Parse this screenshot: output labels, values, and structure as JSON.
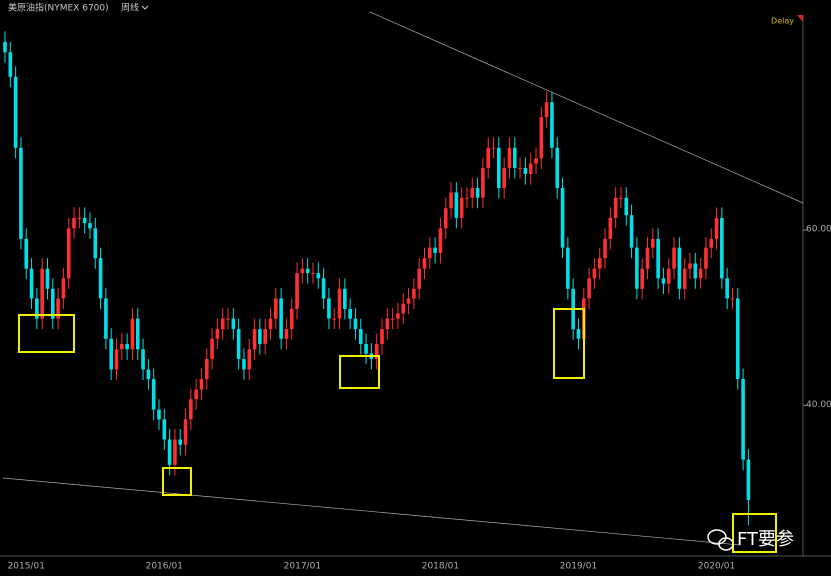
{
  "chart_data": {
    "type": "candlestick",
    "title": "美原油指(NYMEX 6700)",
    "period": "周线",
    "status": "Delay",
    "watermark": "FT要参",
    "up_color": "#ff3030",
    "down_color": "#00e0e8",
    "categories": [
      null,
      null,
      null,
      null,
      "2015/01",
      null,
      null,
      null,
      null,
      null,
      null,
      null,
      null,
      null,
      null,
      null,
      null,
      null,
      null,
      null,
      null,
      null,
      null,
      null,
      null,
      null,
      null,
      null,
      null,
      null,
      "2016/01",
      null,
      null,
      null,
      null,
      null,
      null,
      null,
      null,
      null,
      null,
      null,
      null,
      null,
      null,
      null,
      null,
      null,
      null,
      null,
      null,
      null,
      null,
      null,
      null,
      null,
      "2017/01",
      null,
      null,
      null,
      null,
      null,
      null,
      null,
      null,
      null,
      null,
      null,
      null,
      null,
      null,
      null,
      null,
      null,
      null,
      null,
      null,
      null,
      null,
      null,
      null,
      null,
      "2018/01",
      null,
      null,
      null,
      null,
      null,
      null,
      null,
      null,
      null,
      null,
      null,
      null,
      null,
      null,
      null,
      null,
      null,
      null,
      null,
      null,
      null,
      null,
      null,
      null,
      null,
      "2019/01",
      null,
      null,
      null,
      null,
      null,
      null,
      null,
      null,
      null,
      null,
      null,
      null,
      null,
      null,
      null,
      null,
      null,
      null,
      null,
      null,
      null,
      null,
      null,
      null,
      null,
      "2020/01",
      null,
      null,
      null,
      null,
      null,
      null
    ],
    "open": [
      81.5,
      80.3,
      77.5,
      69.4,
      59,
      55.6,
      52.2,
      49.9,
      55.6,
      53.3,
      49.9,
      52.2,
      54.5,
      60.2,
      61.4,
      61.4,
      60.8,
      60.2,
      56.8,
      52.2,
      47.6,
      44.1,
      46.4,
      47,
      46.4,
      49.9,
      46.4,
      44.1,
      43,
      39.5,
      38.4,
      36.1,
      33.2,
      36.1,
      35.5,
      38.4,
      40.7,
      41.8,
      43,
      45.3,
      47.6,
      48.7,
      49.9,
      49.9,
      48.7,
      45.3,
      44.1,
      46.4,
      48.7,
      47,
      48.7,
      49.9,
      52.2,
      47.6,
      48.7,
      51,
      55.1,
      55.6,
      55.1,
      55.1,
      54.5,
      52.2,
      49.9,
      49.9,
      53.3,
      51,
      49.9,
      48.7,
      47,
      45.9,
      45.3,
      47,
      48.7,
      49.9,
      49.9,
      50.5,
      51.6,
      52.2,
      53.3,
      55.6,
      56.8,
      58,
      57.4,
      60.2,
      62.5,
      64.3,
      61.4,
      63.7,
      63.7,
      64.8,
      63.7,
      67.1,
      69.4,
      69.4,
      64.8,
      67.1,
      69.4,
      67.1,
      67.1,
      66.4,
      67.6,
      68.2,
      72.9,
      74.6,
      69.4,
      64.8,
      58,
      53.3,
      48.7,
      47.6,
      52.2,
      54.5,
      55.6,
      56.8,
      59,
      61.4,
      63.7,
      63.7,
      61.7,
      58,
      53.3,
      55.6,
      58,
      59,
      54.5,
      53.9,
      55.6,
      58,
      53.3,
      55.6,
      56.2,
      54.5,
      55.6,
      58,
      59,
      61.4,
      54.5,
      52.2,
      52.2,
      43,
      33.8
    ],
    "high": [
      82.7,
      81.5,
      78.7,
      70.6,
      60.2,
      56.8,
      53.4,
      56.8,
      56.8,
      54.5,
      53.4,
      55.7,
      61.4,
      62.6,
      62.6,
      62.6,
      62,
      61.4,
      58,
      53.4,
      48.8,
      47.6,
      48.2,
      48.2,
      51.1,
      51.1,
      47.6,
      45.3,
      44.2,
      40.7,
      39.6,
      37.3,
      37.3,
      37.3,
      39.6,
      41.9,
      43,
      44.2,
      46.5,
      48.8,
      49.9,
      51.1,
      51.1,
      51.1,
      49.9,
      46.5,
      47.6,
      49.9,
      49.9,
      49.9,
      51.1,
      53.4,
      53.4,
      49.9,
      52.2,
      56.3,
      56.8,
      56.8,
      56.3,
      56.3,
      55.7,
      53.4,
      51.1,
      54.5,
      54.5,
      52.2,
      51.1,
      49.9,
      48.2,
      47.1,
      48.2,
      49.9,
      51.1,
      51.1,
      51.7,
      52.8,
      53.4,
      54.5,
      56.8,
      58,
      59.2,
      59.2,
      61.4,
      63.7,
      65.5,
      65.5,
      64.9,
      64.9,
      66,
      66,
      68.3,
      70.6,
      70.6,
      70.6,
      68.3,
      70.6,
      70.6,
      68.3,
      68.3,
      68.8,
      69.4,
      74.1,
      75.8,
      75.8,
      70.6,
      66,
      59.2,
      54.5,
      49.9,
      53.4,
      55.7,
      56.8,
      58,
      60.2,
      62.6,
      64.9,
      64.9,
      64.9,
      62.9,
      59.2,
      56.8,
      59.2,
      60.2,
      60.2,
      55.7,
      56.8,
      59.2,
      59.2,
      56.8,
      57.4,
      57.4,
      56.8,
      59.2,
      60.2,
      62.6,
      62.6,
      55.7,
      53.4,
      53.4,
      44.2,
      35
    ],
    "low": [
      79.1,
      76.3,
      68.2,
      57.8,
      54.4,
      51,
      48.7,
      48.7,
      52.1,
      48.7,
      48.7,
      51,
      53.3,
      59,
      60.2,
      59.6,
      59,
      55.6,
      51,
      46.4,
      42.9,
      42.9,
      45.2,
      45.2,
      45.2,
      45.2,
      42.9,
      41.8,
      38.3,
      37.2,
      34.9,
      32,
      32,
      34.3,
      34.3,
      37.2,
      39.5,
      40.6,
      41.8,
      44.1,
      46.4,
      47.5,
      48.7,
      47.5,
      44.1,
      42.9,
      42.9,
      45.2,
      45.8,
      45.8,
      47.5,
      48.7,
      46.4,
      46.4,
      47.5,
      49.8,
      53.9,
      53.9,
      53.9,
      53.3,
      51,
      48.7,
      48.7,
      48.7,
      49.8,
      48.7,
      47.5,
      45.8,
      44.7,
      44.1,
      44.1,
      45.8,
      47.5,
      48.7,
      48.7,
      49.3,
      50.4,
      51,
      52.1,
      54.4,
      55.6,
      56.2,
      56.2,
      59,
      61.3,
      60.2,
      60.2,
      62.5,
      62.5,
      62.5,
      62.5,
      65.9,
      68.2,
      63.6,
      63.6,
      65.9,
      65.9,
      65.9,
      65.2,
      65.2,
      66.4,
      67,
      71.7,
      68.2,
      63.6,
      56.8,
      52.1,
      47.5,
      46.4,
      46.4,
      51,
      53.3,
      54.4,
      55.6,
      57.8,
      60.2,
      62.5,
      60.5,
      56.8,
      52.1,
      52.1,
      54.4,
      56.8,
      53.3,
      52.7,
      52.7,
      54.4,
      52.1,
      52.1,
      54.4,
      53.3,
      53.3,
      54.4,
      56.8,
      57.8,
      53.3,
      51,
      51,
      41.8,
      32.6,
      26.3
    ],
    "close": [
      80.3,
      77.5,
      69.4,
      59,
      55.6,
      52.2,
      49.9,
      55.6,
      53.3,
      49.9,
      52.2,
      54.5,
      60.2,
      61.4,
      61.4,
      60.8,
      60.2,
      56.8,
      52.2,
      47.6,
      44.1,
      46.4,
      47,
      46.4,
      49.9,
      46.4,
      44.1,
      43,
      39.5,
      38.4,
      36.1,
      33.2,
      36.1,
      35.5,
      38.4,
      40.7,
      41.8,
      43,
      45.3,
      47.6,
      48.7,
      49.9,
      49.9,
      48.7,
      45.3,
      44.1,
      46.4,
      48.7,
      47,
      48.7,
      49.9,
      52.2,
      47.6,
      48.7,
      51,
      55.1,
      55.6,
      55.1,
      55.1,
      54.5,
      52.2,
      49.9,
      49.9,
      53.3,
      51,
      49.9,
      48.7,
      47,
      45.9,
      45.3,
      47,
      48.7,
      49.9,
      49.9,
      50.5,
      51.6,
      52.2,
      53.3,
      55.6,
      56.8,
      58,
      57.4,
      60.2,
      62.5,
      64.3,
      61.4,
      63.7,
      63.7,
      64.8,
      63.7,
      67.1,
      69.4,
      69.4,
      64.8,
      67.1,
      69.4,
      67.1,
      67.1,
      66.4,
      67.6,
      68.2,
      72.9,
      74.6,
      69.4,
      64.8,
      58,
      53.3,
      48.7,
      47.6,
      52.2,
      54.5,
      55.6,
      56.8,
      59,
      61.4,
      63.7,
      63.7,
      61.7,
      58,
      53.3,
      55.6,
      58,
      59,
      54.5,
      53.9,
      55.6,
      58,
      53.3,
      55.6,
      56.2,
      54.5,
      55.6,
      58,
      59,
      61.4,
      54.5,
      52.2,
      52.2,
      43,
      33.8,
      29.2
    ],
    "ylim": [
      22.8,
      84.9
    ],
    "yticks": [
      {
        "value": 40,
        "label": "40.00"
      },
      {
        "value": 60,
        "label": "60.00"
      }
    ]
  }
}
